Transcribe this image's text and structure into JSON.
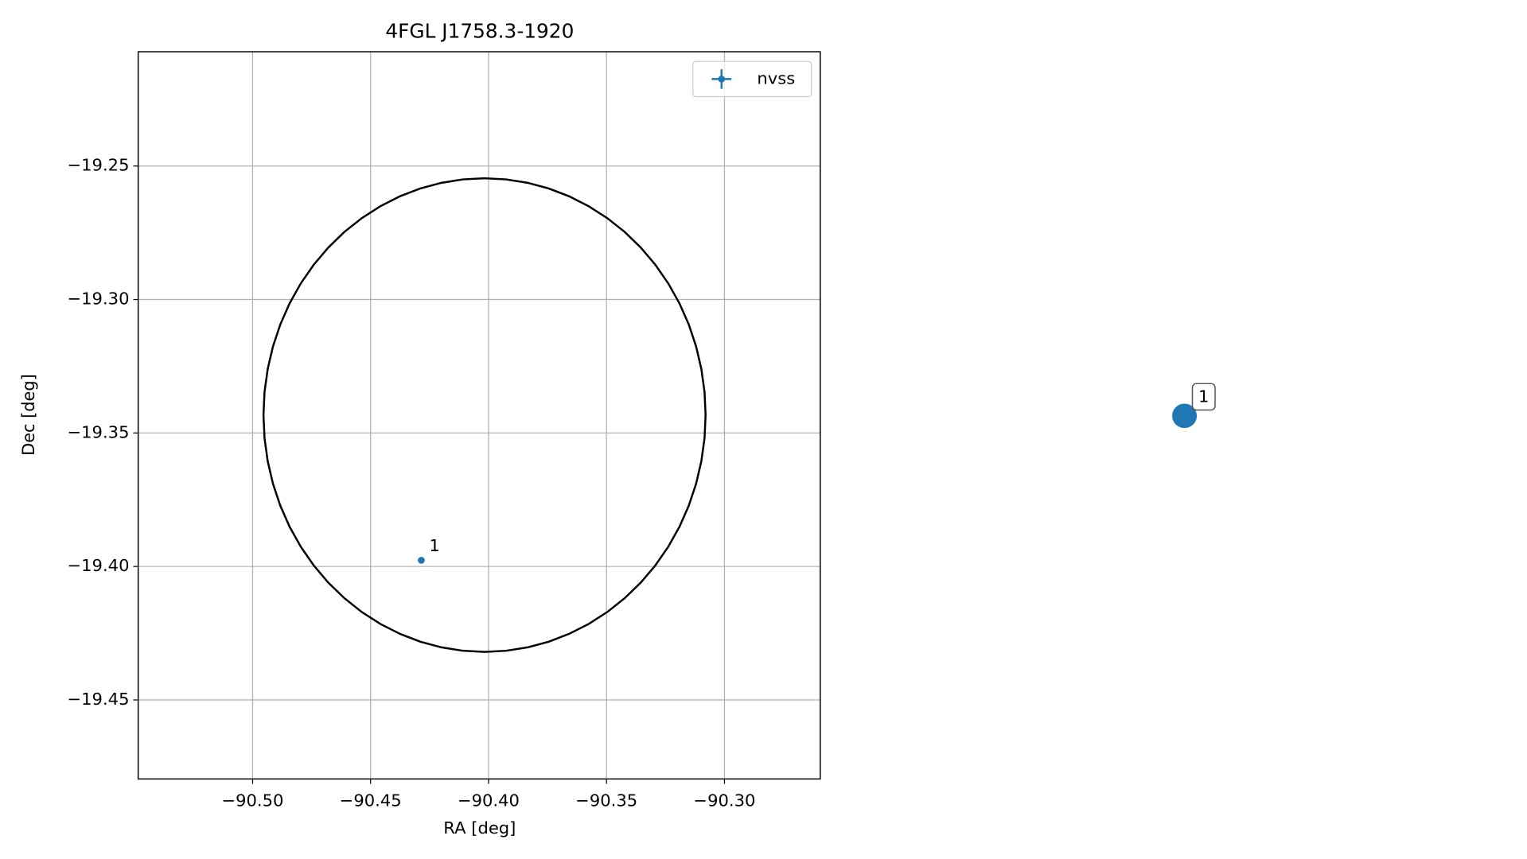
{
  "chart_data": [
    {
      "type": "scatter",
      "title": "4FGL J1758.3-1920",
      "xlabel": "RA [deg]",
      "ylabel": "Dec [deg]",
      "xlim": [
        -90.5485,
        -90.2594
      ],
      "ylim": [
        -19.4796,
        -19.2072
      ],
      "xticks": [
        {
          "value": -90.5,
          "label": "−90.50"
        },
        {
          "value": -90.45,
          "label": "−90.45"
        },
        {
          "value": -90.4,
          "label": "−90.40"
        },
        {
          "value": -90.35,
          "label": "−90.35"
        },
        {
          "value": -90.3,
          "label": "−90.30"
        }
      ],
      "yticks": [
        {
          "value": -19.25,
          "label": "−19.25"
        },
        {
          "value": -19.3,
          "label": "−19.30"
        },
        {
          "value": -19.35,
          "label": "−19.35"
        },
        {
          "value": -19.4,
          "label": "−19.40"
        },
        {
          "value": -19.45,
          "label": "−19.45"
        }
      ],
      "grid": true,
      "legend": "upper right",
      "series": [
        {
          "name": "nvss",
          "color": "#1f77b4",
          "x": [
            -90.4285
          ],
          "values": [
            -19.3977
          ],
          "xerr": [
            0.0008
          ],
          "yerr": [
            0.0012
          ],
          "labels": [
            "1"
          ]
        }
      ],
      "ellipse": {
        "center_x": -90.4017,
        "center_y": -19.3433,
        "semi_x": 0.0937,
        "semi_y": 0.0887,
        "color": "#000000"
      }
    },
    {
      "type": "marker",
      "labels": [
        "1"
      ],
      "color": "#1f77b4"
    }
  ]
}
